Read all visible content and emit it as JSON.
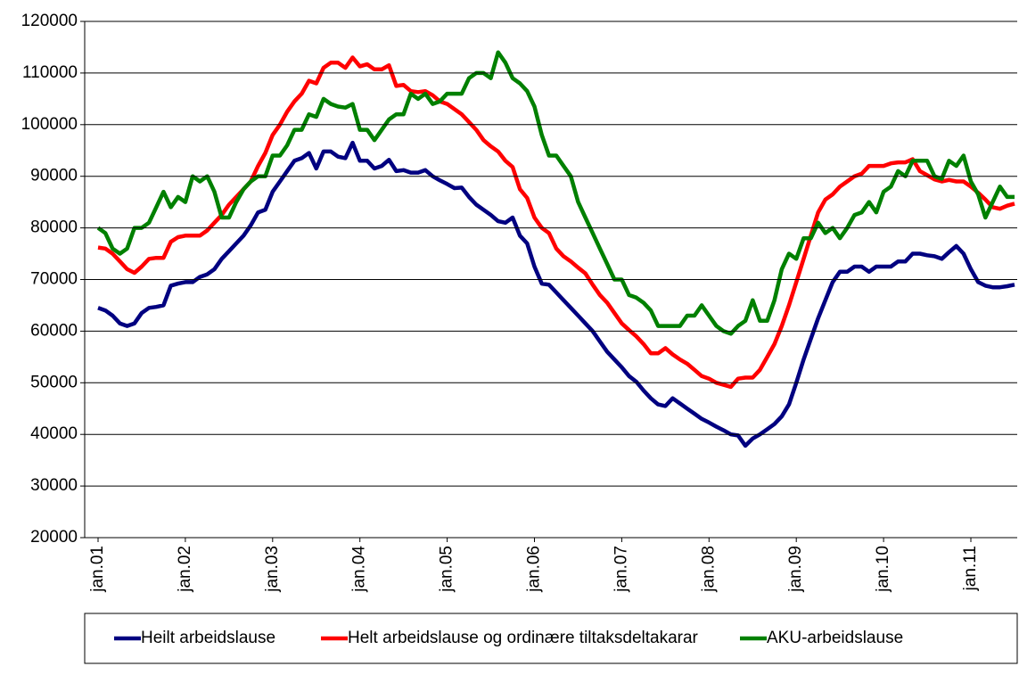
{
  "chart_data": {
    "type": "line",
    "categories": [
      "jan.01",
      null,
      null,
      null,
      null,
      null,
      null,
      null,
      null,
      null,
      null,
      null,
      "jan.02",
      null,
      null,
      null,
      null,
      null,
      null,
      null,
      null,
      null,
      null,
      null,
      "jan.03",
      null,
      null,
      null,
      null,
      null,
      null,
      null,
      null,
      null,
      null,
      null,
      "jan.04",
      null,
      null,
      null,
      null,
      null,
      null,
      null,
      null,
      null,
      null,
      null,
      "jan.05",
      null,
      null,
      null,
      null,
      null,
      null,
      null,
      null,
      null,
      null,
      null,
      "jan.06",
      null,
      null,
      null,
      null,
      null,
      null,
      null,
      null,
      null,
      null,
      null,
      "jan.07",
      null,
      null,
      null,
      null,
      null,
      null,
      null,
      null,
      null,
      null,
      null,
      "jan.08",
      null,
      null,
      null,
      null,
      null,
      null,
      null,
      null,
      null,
      null,
      null,
      "jan.09",
      null,
      null,
      null,
      null,
      null,
      null,
      null,
      null,
      null,
      null,
      null,
      "jan.10",
      null,
      null,
      null,
      null,
      null,
      null,
      null,
      null,
      null,
      null,
      null,
      "jan.11",
      null,
      null,
      null,
      null,
      null,
      null
    ],
    "series": [
      {
        "name": "Heilt arbeidslause",
        "color": "#000080",
        "values": [
          64500,
          64000,
          63000,
          61500,
          61000,
          61500,
          63500,
          64500,
          64700,
          65000,
          68800,
          69200,
          69500,
          69500,
          70500,
          71000,
          72000,
          74000,
          75500,
          77000,
          78500,
          80500,
          83000,
          83500,
          87000,
          89000,
          91000,
          93000,
          93500,
          94500,
          91500,
          94800,
          94800,
          93800,
          93500,
          96500,
          93000,
          93000,
          91500,
          92000,
          93200,
          91000,
          91200,
          90700,
          90700,
          91200,
          90000,
          89200,
          88500,
          87700,
          87800,
          86000,
          84500,
          83500,
          82500,
          81300,
          81000,
          82000,
          78500,
          77000,
          72500,
          69200,
          69000,
          67500,
          66000,
          64500,
          63000,
          61500,
          60000,
          58000,
          56000,
          54500,
          53000,
          51300,
          50200,
          48500,
          47000,
          45800,
          45500,
          47000,
          46000,
          45000,
          44000,
          43000,
          42300,
          41500,
          40800,
          40000,
          39800,
          37800,
          39200,
          40000,
          41000,
          42000,
          43500,
          45800,
          50000,
          54500,
          58500,
          62500,
          66000,
          69500,
          71500,
          71500,
          72500,
          72500,
          71500,
          72500,
          72500,
          72500,
          73500,
          73500,
          75000,
          75000,
          74700,
          74500,
          74000,
          75300,
          76500,
          75000,
          72000,
          69500,
          68800,
          68500,
          68500,
          68700,
          69000
        ]
      },
      {
        "name": "Helt arbeidslause og ordinære tiltaksdeltakarar",
        "color": "#ff0000",
        "values": [
          76200,
          76000,
          75000,
          73500,
          72000,
          71300,
          72500,
          74000,
          74200,
          74200,
          77300,
          78200,
          78500,
          78500,
          78500,
          79500,
          81000,
          82500,
          84500,
          86000,
          87500,
          89000,
          92000,
          94500,
          98000,
          100000,
          102500,
          104500,
          106000,
          108500,
          108000,
          111000,
          112000,
          112000,
          111000,
          113000,
          111300,
          111700,
          110700,
          110700,
          111500,
          107500,
          107700,
          106500,
          106300,
          106500,
          105700,
          104500,
          104000,
          103000,
          102000,
          100500,
          99000,
          97000,
          95800,
          94800,
          93000,
          91800,
          87500,
          85800,
          82000,
          80000,
          79000,
          76000,
          74500,
          73500,
          72300,
          71200,
          69000,
          67000,
          65500,
          63500,
          61500,
          60200,
          59000,
          57500,
          55700,
          55700,
          56700,
          55500,
          54500,
          53700,
          52500,
          51300,
          50800,
          50000,
          49600,
          49200,
          50800,
          51000,
          51000,
          52500,
          55000,
          57500,
          61000,
          65000,
          69500,
          74000,
          78500,
          83000,
          85500,
          86500,
          88000,
          89000,
          90000,
          90500,
          92000,
          92000,
          92000,
          92500,
          92700,
          92700,
          93300,
          91000,
          90200,
          89400,
          89000,
          89300,
          89000,
          89000,
          88000,
          86800,
          85500,
          84000,
          83700,
          84300,
          84700
        ]
      },
      {
        "name": "AKU-arbeidslause",
        "color": "#008000",
        "values": [
          80000,
          79000,
          76000,
          75000,
          76000,
          80000,
          80000,
          81000,
          84000,
          87000,
          84000,
          86000,
          85000,
          90000,
          89000,
          90000,
          87000,
          82000,
          82000,
          85000,
          87500,
          89000,
          90000,
          90000,
          94000,
          94000,
          96000,
          99000,
          99000,
          102000,
          101500,
          105000,
          104000,
          103500,
          103300,
          104000,
          99000,
          99000,
          97000,
          99000,
          101000,
          102000,
          102000,
          106000,
          105000,
          106000,
          104000,
          104500,
          106000,
          106000,
          106000,
          109000,
          110000,
          110000,
          109000,
          114000,
          112000,
          109000,
          108000,
          106500,
          103500,
          98000,
          94000,
          94000,
          92000,
          90000,
          85000,
          82000,
          79000,
          76000,
          73000,
          70000,
          70000,
          67000,
          66500,
          65500,
          64000,
          61000,
          61000,
          61000,
          61000,
          63000,
          63000,
          65000,
          63000,
          61000,
          60000,
          59500,
          61000,
          62000,
          66000,
          62000,
          62000,
          66000,
          72000,
          75000,
          74000,
          78000,
          78000,
          81000,
          79000,
          80000,
          78000,
          80000,
          82500,
          83000,
          85000,
          83000,
          87000,
          88000,
          91000,
          90000,
          93000,
          93000,
          93000,
          90000,
          89500,
          93000,
          92000,
          94000,
          89000,
          86500,
          82000,
          85000,
          88000,
          86000,
          86000
        ]
      }
    ],
    "ylim": [
      20000,
      120000
    ],
    "yticks": [
      20000,
      30000,
      40000,
      50000,
      60000,
      70000,
      80000,
      90000,
      100000,
      110000,
      120000
    ],
    "grid": true,
    "legend": "bottom"
  }
}
